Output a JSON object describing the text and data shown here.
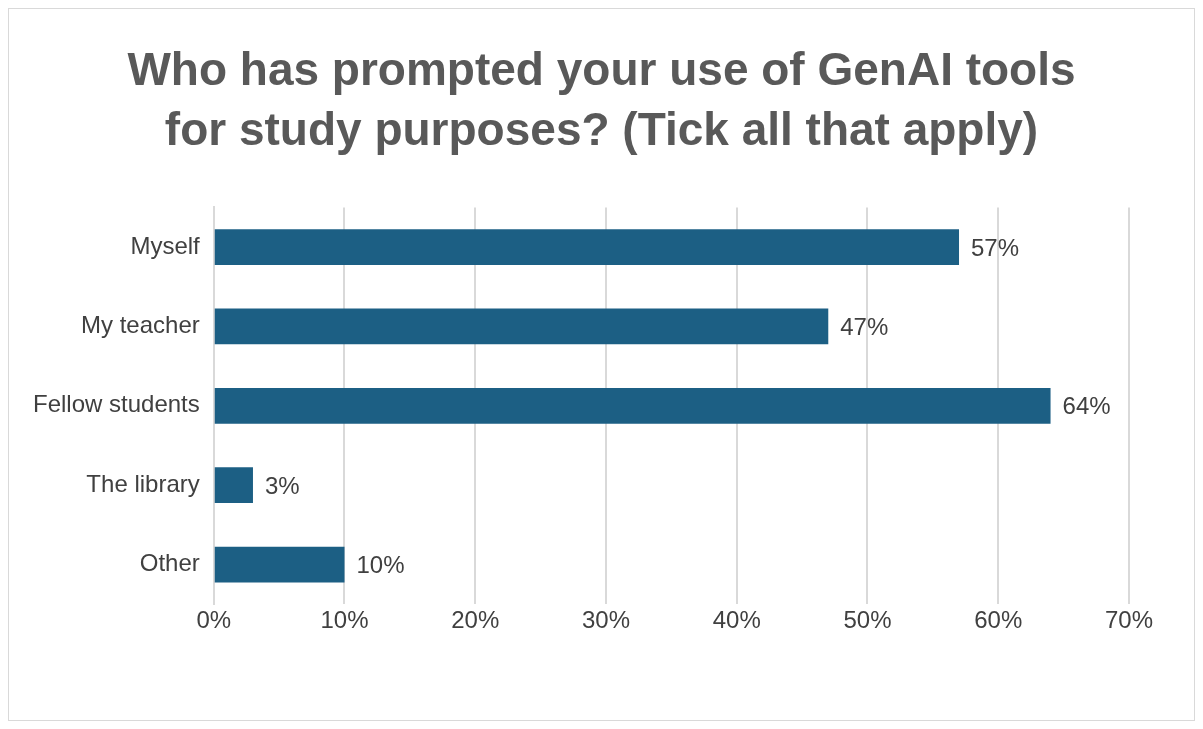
{
  "chart_data": {
    "type": "bar",
    "orientation": "horizontal",
    "title": "Who has prompted your use of GenAI tools for study purposes? (Tick all that apply)",
    "categories": [
      "Myself",
      "My teacher",
      "Fellow students",
      "The library",
      "Other"
    ],
    "values": [
      57,
      47,
      64,
      3,
      10
    ],
    "value_labels": [
      "57%",
      "47%",
      "64%",
      "3%",
      "10%"
    ],
    "color": "#1c5f84",
    "xlim": [
      0,
      70
    ],
    "xticks": [
      {
        "value": 0,
        "label": "0%"
      },
      {
        "value": 10,
        "label": "10%"
      },
      {
        "value": 20,
        "label": "20%"
      },
      {
        "value": 30,
        "label": "30%"
      },
      {
        "value": 40,
        "label": "40%"
      },
      {
        "value": 50,
        "label": "50%"
      },
      {
        "value": 60,
        "label": "60%"
      },
      {
        "value": 70,
        "label": "70%"
      }
    ],
    "grid": "x",
    "legend": false
  }
}
